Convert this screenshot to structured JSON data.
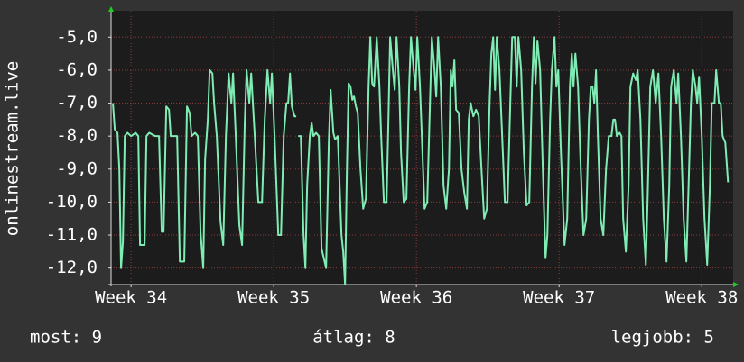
{
  "chart_data": {
    "type": "line",
    "y_label": "onlinestream.live",
    "color": "#7fecb4",
    "grid": true,
    "ylim": [
      -12.5,
      -4.2
    ],
    "yticks": [
      {
        "value": -5,
        "label": "-5,0"
      },
      {
        "value": -6,
        "label": "-6,0"
      },
      {
        "value": -7,
        "label": "-7,0"
      },
      {
        "value": -8,
        "label": "-8,0"
      },
      {
        "value": -9,
        "label": "-9,0"
      },
      {
        "value": -10,
        "label": "-10,0"
      },
      {
        "value": -11,
        "label": "-11,0"
      },
      {
        "value": -12,
        "label": "-12,0"
      }
    ],
    "xlim": [
      33.86,
      38.22
    ],
    "xticks": [
      {
        "value": 34,
        "label": "Week 34"
      },
      {
        "value": 35,
        "label": "Week 35"
      },
      {
        "value": 36,
        "label": "Week 36"
      },
      {
        "value": 37,
        "label": "Week 37"
      },
      {
        "value": 38,
        "label": "Week 38"
      }
    ],
    "x": [
      33.873,
      33.886,
      33.905,
      33.918,
      33.93,
      33.943,
      33.956,
      33.975,
      34.0,
      34.032,
      34.051,
      34.063,
      34.095,
      34.108,
      34.127,
      34.171,
      34.196,
      34.215,
      34.228,
      34.247,
      34.266,
      34.278,
      34.323,
      34.342,
      34.373,
      34.392,
      34.411,
      34.424,
      34.449,
      34.468,
      34.487,
      34.506,
      34.519,
      34.538,
      34.551,
      34.57,
      34.582,
      34.601,
      34.627,
      34.646,
      34.665,
      34.684,
      34.703,
      34.715,
      34.734,
      34.759,
      34.778,
      34.797,
      34.81,
      34.829,
      34.842,
      34.867,
      34.892,
      34.918,
      34.937,
      34.956,
      34.975,
      34.987,
      35.006,
      35.032,
      35.051,
      35.07,
      35.089,
      35.101,
      35.114,
      35.127,
      35.146,
      35.158,
      35.165,
      35.171,
      35.19,
      35.209,
      35.222,
      35.234,
      35.253,
      35.266,
      35.278,
      35.297,
      35.316,
      35.335,
      35.367,
      35.386,
      35.399,
      35.418,
      35.43,
      35.449,
      35.475,
      35.487,
      35.5,
      35.513,
      35.525,
      35.538,
      35.551,
      35.563,
      35.576,
      35.589,
      35.608,
      35.627,
      35.646,
      35.665,
      35.677,
      35.69,
      35.703,
      35.722,
      35.741,
      35.753,
      35.772,
      35.791,
      35.804,
      35.816,
      35.835,
      35.848,
      35.861,
      35.88,
      35.892,
      35.911,
      35.93,
      35.949,
      35.962,
      35.981,
      35.994,
      36.006,
      36.025,
      36.038,
      36.057,
      36.076,
      36.095,
      36.108,
      36.127,
      36.139,
      36.152,
      36.171,
      36.19,
      36.209,
      36.228,
      36.241,
      36.253,
      36.266,
      36.278,
      36.297,
      36.316,
      36.335,
      36.354,
      36.367,
      36.38,
      36.399,
      36.418,
      36.437,
      36.456,
      36.475,
      36.494,
      36.513,
      36.525,
      36.538,
      36.551,
      36.563,
      36.582,
      36.601,
      36.62,
      36.639,
      36.658,
      36.671,
      36.69,
      36.703,
      36.715,
      36.734,
      36.753,
      36.772,
      36.791,
      36.81,
      36.823,
      36.835,
      36.848,
      36.867,
      36.886,
      36.905,
      36.918,
      36.937,
      36.949,
      36.968,
      36.981,
      36.994,
      37.013,
      37.038,
      37.057,
      37.076,
      37.089,
      37.101,
      37.114,
      37.133,
      37.152,
      37.171,
      37.19,
      37.209,
      37.222,
      37.234,
      37.247,
      37.259,
      37.272,
      37.291,
      37.31,
      37.329,
      37.348,
      37.367,
      37.38,
      37.392,
      37.405,
      37.424,
      37.437,
      37.449,
      37.468,
      37.487,
      37.5,
      37.519,
      37.538,
      37.551,
      37.57,
      37.589,
      37.608,
      37.62,
      37.639,
      37.658,
      37.677,
      37.696,
      37.715,
      37.734,
      37.753,
      37.772,
      37.785,
      37.804,
      37.823,
      37.835,
      37.854,
      37.873,
      37.892,
      37.911,
      37.924,
      37.937,
      37.956,
      37.968,
      37.981,
      38.0,
      38.019,
      38.038,
      38.057,
      38.07,
      38.089,
      38.101,
      38.12,
      38.133,
      38.146,
      38.165,
      38.184
    ],
    "values": [
      -7.0,
      -7.8,
      -7.9,
      -9,
      -12.0,
      -11.2,
      -8.0,
      -7.9,
      -8.0,
      -7.9,
      -8.0,
      -11.3,
      -11.3,
      -8.0,
      -7.9,
      -8.0,
      -8.0,
      -10.9,
      -10.9,
      -7.1,
      -7.2,
      -8.0,
      -8.0,
      -11.8,
      -11.8,
      -7.1,
      -7.3,
      -8.0,
      -7.9,
      -8.0,
      -10.9,
      -12.0,
      -8.7,
      -7.5,
      -6.0,
      -6.1,
      -7.0,
      -8.0,
      -10.6,
      -11.3,
      -8.0,
      -6.1,
      -7.0,
      -6.1,
      -8.0,
      -10.7,
      -11.3,
      -7.6,
      -6.0,
      -7.0,
      -6.1,
      -8.0,
      -10.0,
      -10.0,
      -7.5,
      -6.0,
      -7.0,
      -6.1,
      -8.0,
      -11.0,
      -11.0,
      -8.0,
      -7.0,
      -7.0,
      -6.1,
      -7.1,
      -7.4,
      -7.4,
      null,
      -8.0,
      -8.0,
      -11.0,
      -12.0,
      -9.5,
      -8.0,
      -7.6,
      -8.0,
      -7.9,
      -8.0,
      -11.4,
      -12.0,
      -8.2,
      -6.6,
      -7.9,
      -8.1,
      -8.0,
      -11.0,
      -11.5,
      -12.5,
      -9,
      -6.4,
      -6.5,
      -6.9,
      -6.8,
      -7.1,
      -7.3,
      -9,
      -10.2,
      -9.9,
      -6.5,
      -5.0,
      -6.4,
      -6.5,
      -5.0,
      -6.5,
      -8.0,
      -10.0,
      -10.0,
      -7.5,
      -5.0,
      -6.0,
      -6.6,
      -5.0,
      -6.5,
      -8.5,
      -10.0,
      -9.9,
      -6.5,
      -5.0,
      -6.0,
      -6.6,
      -5.0,
      -6.5,
      -8,
      -10.2,
      -10.0,
      -7.0,
      -5.0,
      -6.0,
      -6.8,
      -5.0,
      -6.5,
      -9.5,
      -10.2,
      -9.0,
      -6.0,
      -6.5,
      -5.7,
      -7.2,
      -7.3,
      -9,
      -9.7,
      -10.2,
      -7.5,
      -7.0,
      -7.4,
      -7.2,
      -7.4,
      -9,
      -10.5,
      -10.2,
      -7.0,
      -5.5,
      -5.0,
      -6.6,
      -5.0,
      -6.0,
      -8,
      -10.0,
      -10.0,
      -7,
      -5.0,
      -5.0,
      -6.5,
      -5.0,
      -6.0,
      -8.5,
      -10.1,
      -10.0,
      -6.5,
      -5.0,
      -6.4,
      -5.1,
      -6.0,
      -9,
      -11.7,
      -11.0,
      -7.5,
      -6.0,
      -5.0,
      -6.5,
      -6.0,
      -8.5,
      -11.3,
      -10.5,
      -6.5,
      -5.5,
      -6.5,
      -5.5,
      -6.5,
      -9,
      -11.0,
      -10.5,
      -7.5,
      -6.5,
      -6.5,
      -7.0,
      -6.0,
      -8.0,
      -10.5,
      -11.0,
      -9,
      -8.0,
      -8.0,
      -7.5,
      -7.5,
      -8.0,
      -7.9,
      -8.0,
      -10.5,
      -11.5,
      -9.5,
      -6.5,
      -6.1,
      -6.3,
      -6.0,
      -7.5,
      -10.5,
      -11.9,
      -10,
      -6.5,
      -6.0,
      -7.0,
      -6.1,
      -8.0,
      -10.5,
      -11.8,
      -9.5,
      -6.5,
      -6.0,
      -7.0,
      -6.1,
      -8.0,
      -10.5,
      -11.8,
      -9,
      -7,
      -6.0,
      -6.5,
      -7.0,
      -6.2,
      -8.0,
      -10.5,
      -11.9,
      -9.5,
      -7.0,
      -7.0,
      -6.0,
      -7.0,
      -7.0,
      -8.0,
      -8.2,
      -9.4
    ],
    "stats": [
      "most: 9",
      "átlag: 8",
      "legjobb: 5"
    ]
  }
}
